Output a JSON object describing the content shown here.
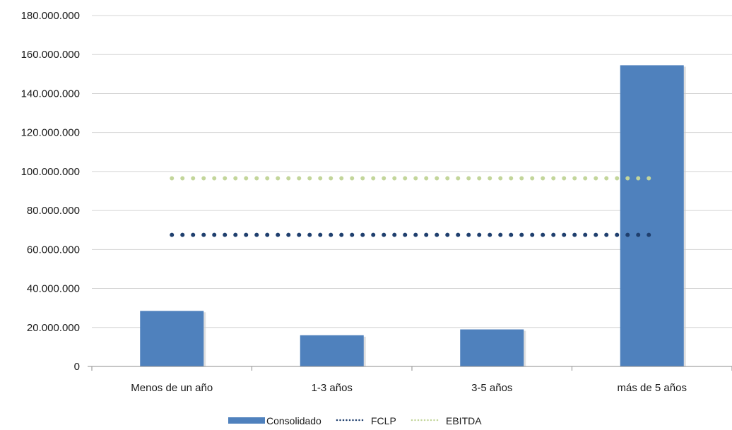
{
  "chart_data": {
    "type": "bar",
    "categories": [
      "Menos de un año",
      "1-3 años",
      "3-5 años",
      "más de 5 años"
    ],
    "series": [
      {
        "name": "Consolidado",
        "type": "bar",
        "values": [
          28500000,
          16000000,
          19000000,
          154500000
        ],
        "color": "#4f81bd"
      },
      {
        "name": "FCLP",
        "type": "line",
        "style": "dotted",
        "values": [
          67500000,
          67500000,
          67500000,
          67500000
        ],
        "color": "#1f3f6e"
      },
      {
        "name": "EBITDA",
        "type": "line",
        "style": "dotted",
        "values": [
          96500000,
          96500000,
          96500000,
          96500000
        ],
        "color": "#c3d69b"
      }
    ],
    "yticks": [
      "0",
      "20.000.000",
      "40.000.000",
      "60.000.000",
      "80.000.000",
      "100.000.000",
      "120.000.000",
      "140.000.000",
      "160.000.000",
      "180.000.000"
    ],
    "ylim": [
      0,
      180000000
    ],
    "grid": true,
    "legend_position": "bottom"
  }
}
